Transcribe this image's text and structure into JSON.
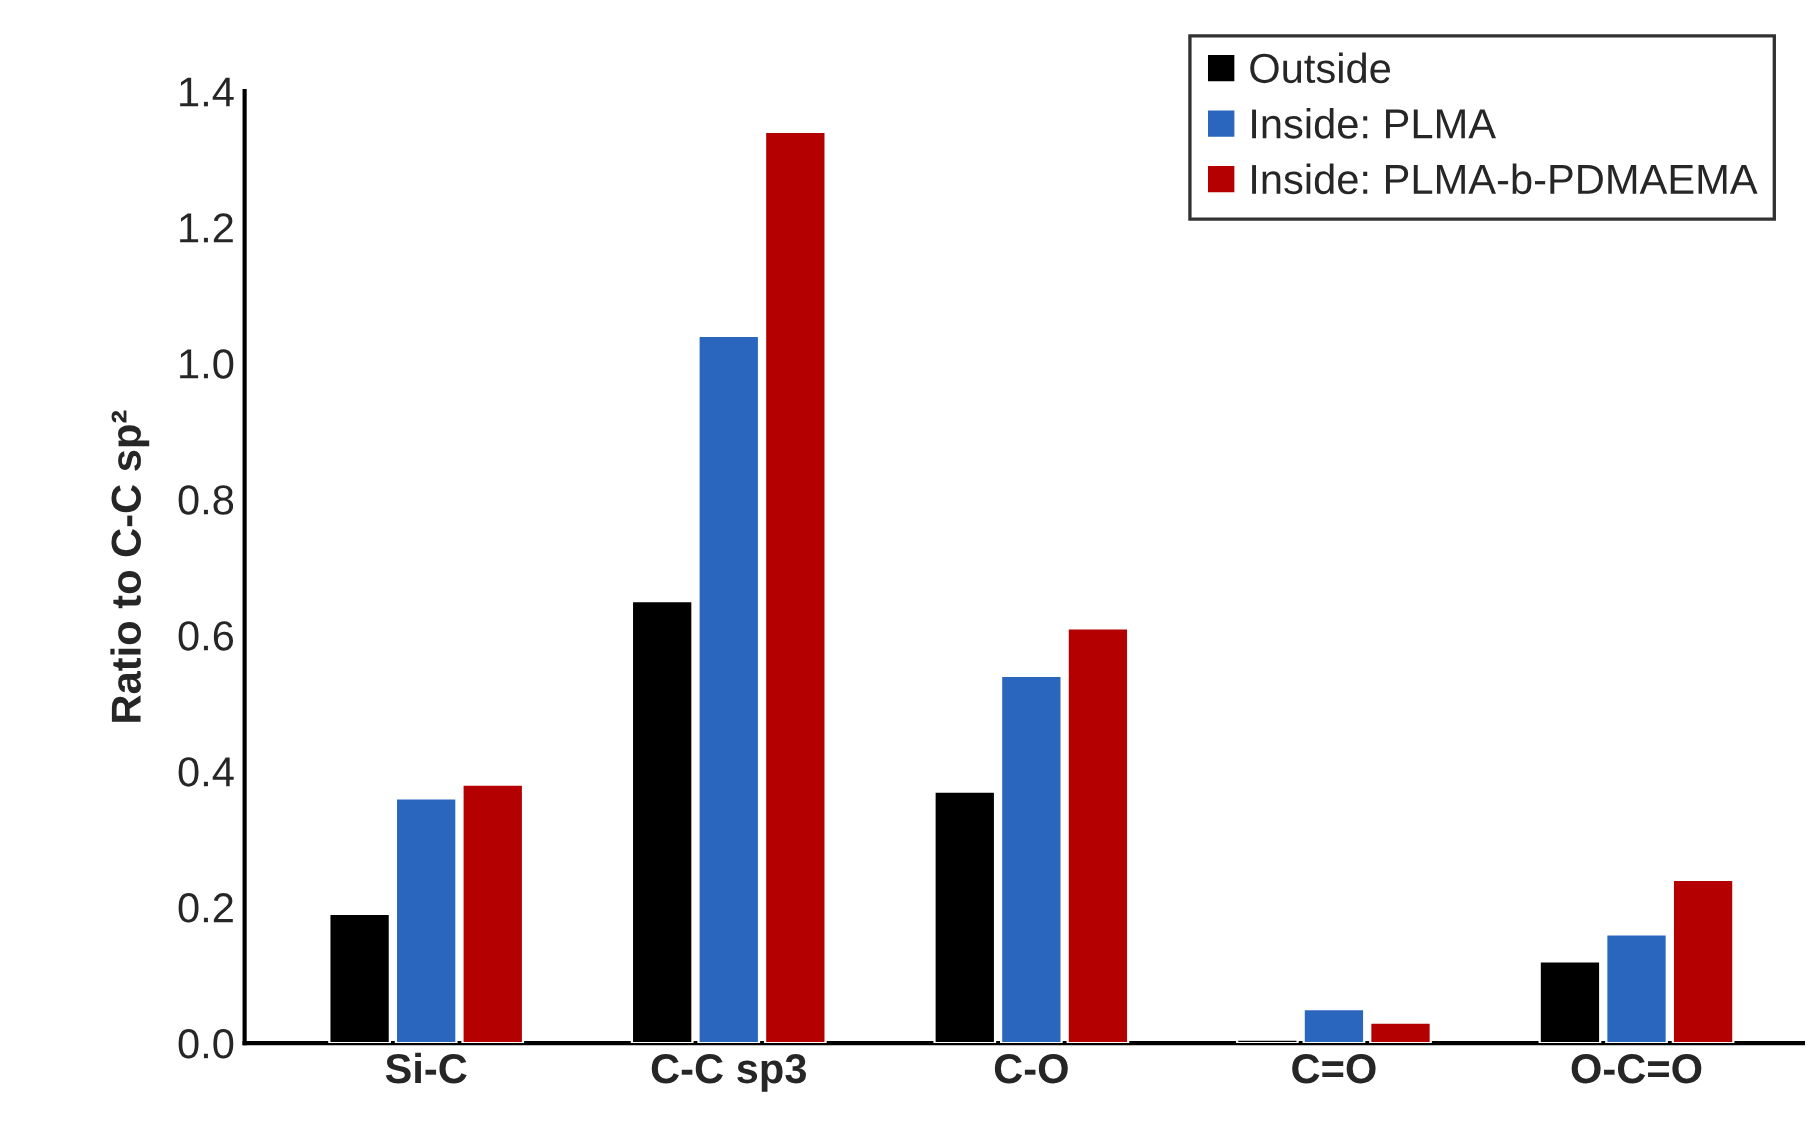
{
  "chart_data": {
    "type": "bar",
    "ylabel": "Ratio to C-C sp²",
    "categories": [
      "Si-C",
      "C-C sp3",
      "C-O",
      "C=O",
      "O-C=O"
    ],
    "series": [
      {
        "name": "Outside",
        "color": "#000000",
        "values": [
          0.19,
          0.65,
          0.37,
          0.005,
          0.12
        ]
      },
      {
        "name": "Inside: PLMA",
        "color": "#2a66be",
        "values": [
          0.36,
          1.04,
          0.54,
          0.05,
          0.16
        ]
      },
      {
        "name": "Inside: PLMA-b-PDMAEMA",
        "color": "#b40000",
        "values": [
          0.38,
          1.34,
          0.61,
          0.03,
          0.24
        ]
      }
    ],
    "ylim": [
      0,
      1.4
    ],
    "yticks": [
      {
        "value": 0,
        "label": "0.0"
      },
      {
        "value": 0.2,
        "label": "0.2"
      },
      {
        "value": 0.4,
        "label": "0.4"
      },
      {
        "value": 0.6,
        "label": "0.6"
      },
      {
        "value": 0.8,
        "label": "0.8"
      },
      {
        "value": 1.0,
        "label": "1.0"
      },
      {
        "value": 1.2,
        "label": "1.2"
      },
      {
        "value": 1.4,
        "label": "1.4"
      }
    ],
    "grid": false,
    "legend": "top right"
  }
}
